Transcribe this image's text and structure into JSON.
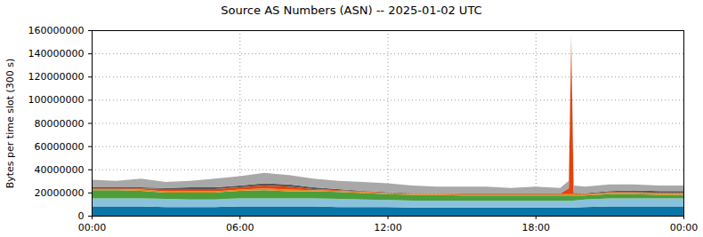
{
  "chart_data": {
    "type": "area",
    "title": "Source AS Numbers (ASN) -- 2025-01-02 UTC",
    "y_label": "Bytes per time slot (300 s)",
    "stacked": true,
    "grid": true,
    "x": [
      0,
      1,
      2,
      3,
      4,
      5,
      6,
      7,
      8,
      9,
      10,
      11,
      12,
      13,
      14,
      15,
      16,
      17,
      18,
      19,
      19.35,
      19.45,
      19.55,
      20,
      21,
      22,
      23,
      24
    ],
    "xlim": [
      0,
      24
    ],
    "xticks": [
      {
        "value": 0,
        "label": "00:00"
      },
      {
        "value": 6,
        "label": "06:00"
      },
      {
        "value": 12,
        "label": "12:00"
      },
      {
        "value": 18,
        "label": "18:00"
      },
      {
        "value": 24,
        "label": "00:00"
      }
    ],
    "ylim": [
      0,
      160000000
    ],
    "yticks": [
      0,
      20000000,
      40000000,
      60000000,
      80000000,
      100000000,
      120000000,
      140000000,
      160000000
    ],
    "series": [
      {
        "color": "#0a76a8",
        "values": [
          8000000,
          8000000,
          8000000,
          7500000,
          7500000,
          7500000,
          8000000,
          8000000,
          8000000,
          8000000,
          7500000,
          7500000,
          7500000,
          7000000,
          7000000,
          7000000,
          7000000,
          7000000,
          7000000,
          7000000,
          7000000,
          7000000,
          7000000,
          7500000,
          8000000,
          8000000,
          8000000,
          8000000
        ]
      },
      {
        "color": "#8ac2de",
        "values": [
          7000000,
          7000000,
          7000000,
          7000000,
          6500000,
          6500000,
          7000000,
          7000000,
          7000000,
          7000000,
          7000000,
          6500000,
          6000000,
          6000000,
          6000000,
          6000000,
          6000000,
          6000000,
          6000000,
          6000000,
          6000000,
          6000000,
          6000000,
          6500000,
          7000000,
          7000000,
          7000000,
          7000000
        ]
      },
      {
        "color": "#4c9e3a",
        "values": [
          7000000,
          7000000,
          6500000,
          5500000,
          6000000,
          6000000,
          6500000,
          7000000,
          6000000,
          6000000,
          6000000,
          5500000,
          5000000,
          5000000,
          5000000,
          4500000,
          4500000,
          4500000,
          4500000,
          4500000,
          4500000,
          4500000,
          4500000,
          3500000,
          3500000,
          3500000,
          3000000,
          3000000
        ]
      },
      {
        "color": "#e08a1e",
        "values": [
          1000000,
          1000000,
          1000000,
          1000000,
          1000000,
          1000000,
          1000000,
          1500000,
          1500000,
          1000000,
          1000000,
          1000000,
          1000000,
          1000000,
          1000000,
          1000000,
          1000000,
          1000000,
          1000000,
          1000000,
          1000000,
          1000000,
          1000000,
          1000000,
          1500000,
          1500000,
          1500000,
          1500000
        ]
      },
      {
        "color": "#e4420c",
        "values": [
          500000,
          500000,
          1000000,
          2000000,
          2000000,
          2000000,
          2000000,
          2500000,
          2500000,
          1000000,
          500000,
          500000,
          300000,
          300000,
          300000,
          300000,
          300000,
          300000,
          300000,
          300000,
          5000000,
          132000000,
          1000000,
          300000,
          300000,
          300000,
          300000,
          300000
        ]
      },
      {
        "color": "#555555",
        "values": [
          1000000,
          1000000,
          1000000,
          1000000,
          1500000,
          1500000,
          1500000,
          2000000,
          2000000,
          1500000,
          1000000,
          500000,
          500000,
          300000,
          300000,
          300000,
          300000,
          300000,
          300000,
          300000,
          300000,
          500000,
          300000,
          500000,
          1000000,
          1500000,
          1500000,
          1500000
        ]
      },
      {
        "color": "#a8a8a8",
        "values": [
          6500000,
          5500000,
          7500000,
          5000000,
          5500000,
          7500000,
          8000000,
          9000000,
          8000000,
          7500000,
          7000000,
          7500000,
          7700000,
          6400000,
          5400000,
          5900000,
          5900000,
          4900000,
          5900000,
          4900000,
          6200000,
          6000000,
          6200000,
          5700000,
          5700000,
          5200000,
          4700000,
          4700000
        ]
      }
    ]
  }
}
